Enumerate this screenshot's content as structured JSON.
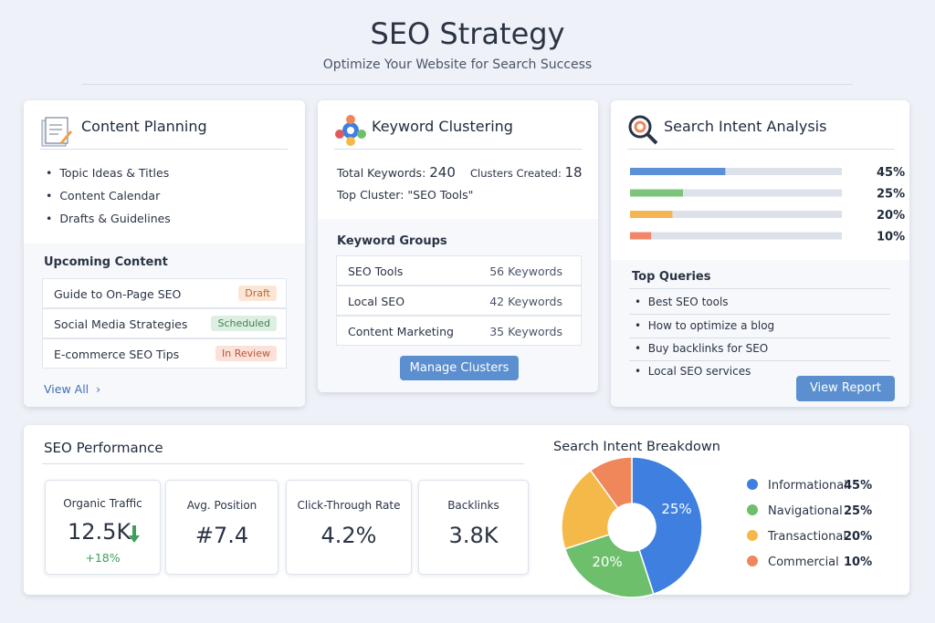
{
  "header": {
    "title": "SEO Strategy",
    "subtitle": "Optimize Your Website for Search Success"
  },
  "content_planning": {
    "title": "Content Planning",
    "items": [
      "Topic Ideas & Titles",
      "Content Calendar",
      "Drafts & Guidelines"
    ],
    "upcoming_title": "Upcoming Content",
    "upcoming": [
      {
        "title": "Guide to On-Page SEO",
        "status": "Draft"
      },
      {
        "title": "Social Media Strategies",
        "status": "Scheduled"
      },
      {
        "title": "E-commerce SEO Tips",
        "status": "In Review"
      }
    ],
    "view_all": "View All"
  },
  "keyword_clustering": {
    "title": "Keyword Clustering",
    "total_label": "Total Keywords:",
    "total": 240,
    "clusters_label": "Clusters Created:",
    "clusters": 18,
    "top_label": "Top Cluster:",
    "top": "\"SEO Tools\"",
    "groups_title": "Keyword Groups",
    "groups": [
      {
        "name": "SEO Tools",
        "count": "56 Keywords"
      },
      {
        "name": "Local SEO",
        "count": "42 Keywords"
      },
      {
        "name": "Content Marketing",
        "count": "35 Keywords"
      }
    ],
    "button": "Manage Clusters"
  },
  "search_intent": {
    "title": "Search Intent Analysis",
    "bars": [
      {
        "value": 45,
        "label": "45%",
        "color": "#5b8fd6"
      },
      {
        "value": 25,
        "label": "25%",
        "color": "#7cc47a"
      },
      {
        "value": 20,
        "label": "20%",
        "color": "#f4b653"
      },
      {
        "value": 10,
        "label": "10%",
        "color": "#f0876a"
      }
    ],
    "queries_title": "Top Queries",
    "queries": [
      "Best SEO tools",
      "How to optimize a blog",
      "Buy backlinks for SEO",
      "Local SEO services"
    ],
    "button": "View Report"
  },
  "performance": {
    "title": "SEO Performance",
    "metrics": [
      {
        "label": "Organic Traffic",
        "value": "12.5K",
        "change": "+18%"
      },
      {
        "label": "Avg. Position",
        "value": "#7.4"
      },
      {
        "label": "Click-Through Rate",
        "value": "4.2%"
      },
      {
        "label": "Backlinks",
        "value": "3.8K"
      }
    ]
  },
  "breakdown": {
    "title": "Search Intent Breakdown",
    "items": [
      {
        "name": "Informational",
        "value": 45,
        "label": "45%",
        "color": "#3f7fe0"
      },
      {
        "name": "Navigational",
        "value": 25,
        "label": "25%",
        "color": "#6dbf6b"
      },
      {
        "name": "Transactional",
        "value": 20,
        "label": "20%",
        "color": "#f5b94a"
      },
      {
        "name": "Commercial",
        "value": 10,
        "label": "10%",
        "color": "#f0875a"
      }
    ],
    "slice_labels": [
      "25%",
      "20%"
    ]
  }
}
